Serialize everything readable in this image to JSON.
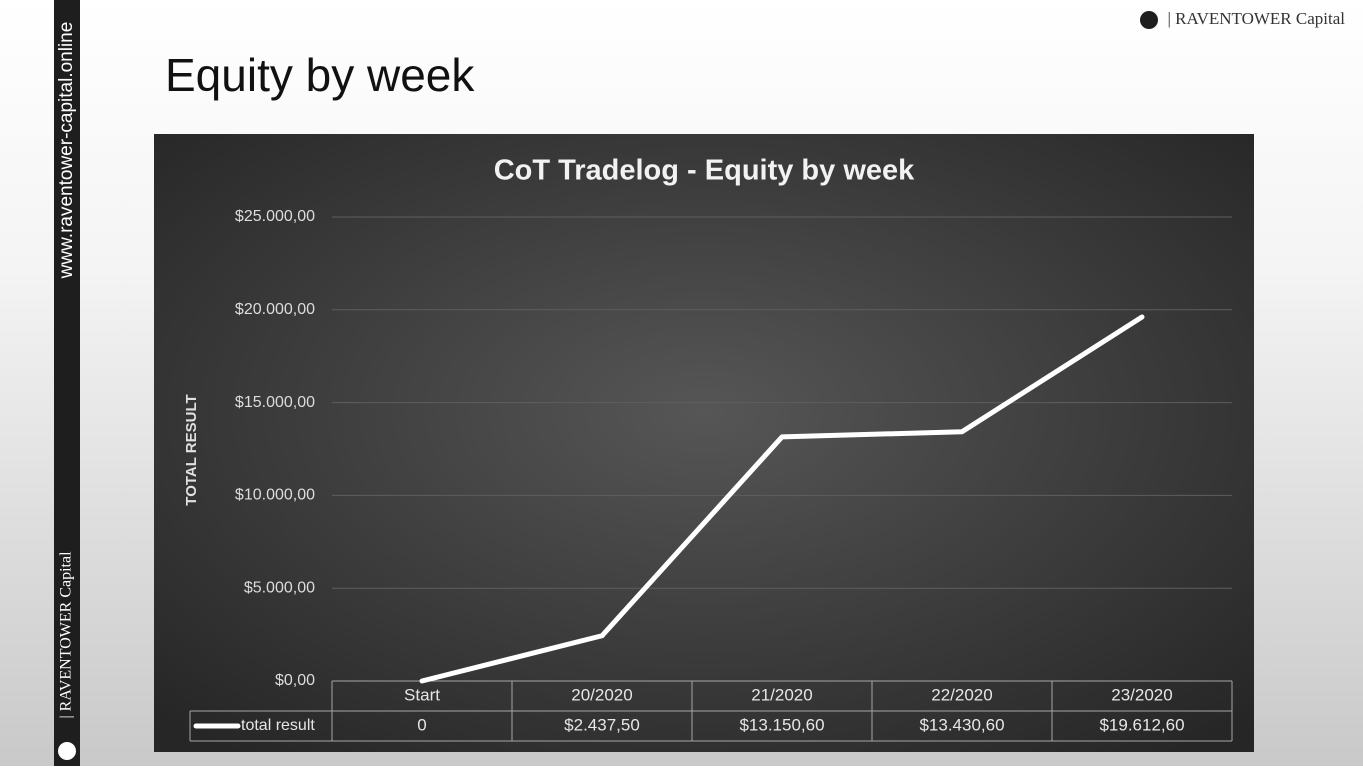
{
  "slide": {
    "heading": "Equity by week",
    "brand": "| RAVENTOWER Capital",
    "side_url": "www.raventower-capital.online",
    "side_brand": "| RAVENTOWER Capital"
  },
  "chart_data": {
    "type": "line",
    "title": "CoT Tradelog - Equity by week",
    "y_label": "TOTAL RESULT",
    "categories": [
      "Start",
      "20/2020",
      "21/2020",
      "22/2020",
      "23/2020"
    ],
    "series": [
      {
        "name": "total result",
        "color": "#ffffff",
        "values": [
          0,
          2437.5,
          13150.6,
          13430.6,
          19612.6
        ],
        "value_labels": [
          "0",
          "$2.437,50",
          "$13.150,60",
          "$13.430,60",
          "$19.612,60"
        ]
      }
    ],
    "ylim": [
      0,
      25000
    ],
    "yticks": [
      {
        "value": 0,
        "label": "$0,00"
      },
      {
        "value": 5000,
        "label": "$5.000,00"
      },
      {
        "value": 10000,
        "label": "$10.000,00"
      },
      {
        "value": 15000,
        "label": "$15.000,00"
      },
      {
        "value": 20000,
        "label": "$20.000,00"
      },
      {
        "value": 25000,
        "label": "$25.000,00"
      }
    ],
    "grid": true,
    "data_table": true
  }
}
